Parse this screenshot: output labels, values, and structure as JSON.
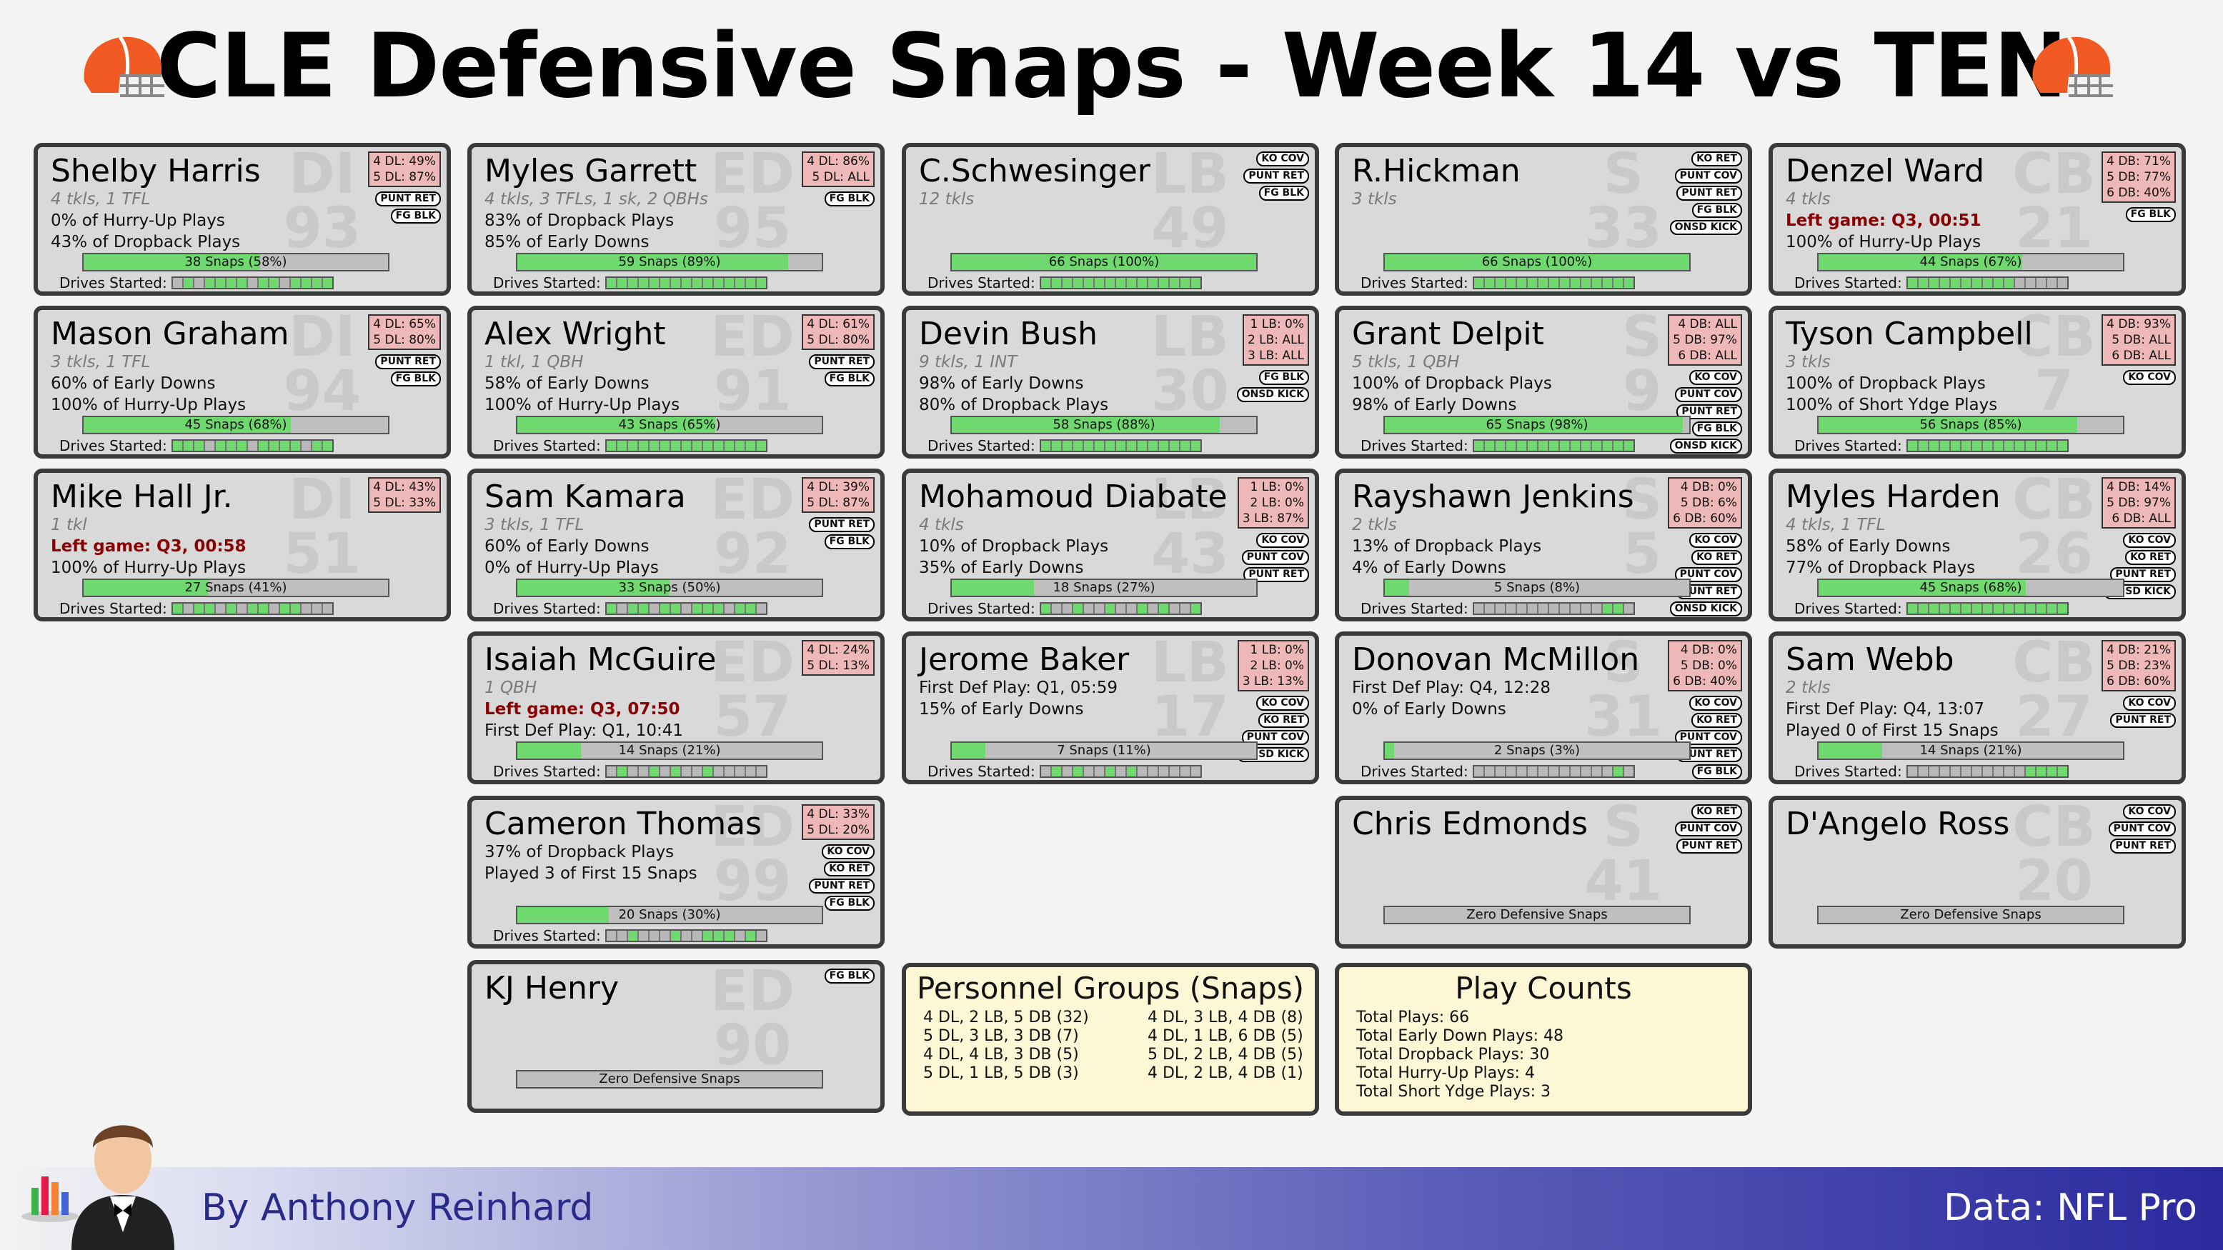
{
  "title": "CLE Defensive Snaps - Week 14 vs TEN",
  "footer": {
    "byline": "By Anthony Reinhard",
    "source": "Data: NFL Pro"
  },
  "cards": [
    {
      "col": 0,
      "row": 0,
      "name": "Shelby Harris",
      "pos": "DI",
      "num": "93",
      "lines": [
        {
          "t": "4 tkls, 1 TFL",
          "c": "stats"
        },
        {
          "t": "0% of Hurry-Up Plays"
        },
        {
          "t": "43% of Dropback Plays"
        }
      ],
      "depth": [
        "4 DL: 49%",
        "5 DL: 87%"
      ],
      "badges": [
        "PUNT RET",
        "FG BLK"
      ],
      "snaps": "38 Snaps (58%)",
      "pct": 58,
      "drives": [
        0,
        1,
        0,
        1,
        1,
        1,
        1,
        0,
        1,
        1,
        0,
        1,
        1,
        1,
        1
      ]
    },
    {
      "col": 0,
      "row": 1,
      "name": "Mason Graham",
      "pos": "DI",
      "num": "94",
      "lines": [
        {
          "t": "3 tkls, 1 TFL",
          "c": "stats"
        },
        {
          "t": "60% of Early Downs"
        },
        {
          "t": "100% of Hurry-Up Plays"
        }
      ],
      "depth": [
        "4 DL: 65%",
        "5 DL: 80%"
      ],
      "badges": [
        "PUNT RET",
        "FG BLK"
      ],
      "snaps": "45 Snaps (68%)",
      "pct": 68,
      "drives": [
        1,
        1,
        1,
        0,
        1,
        1,
        1,
        0,
        1,
        1,
        1,
        1,
        0,
        1,
        1
      ]
    },
    {
      "col": 0,
      "row": 2,
      "name": "Mike Hall Jr.",
      "pos": "DI",
      "num": "51",
      "lines": [
        {
          "t": "1 tkl",
          "c": "stats"
        },
        {
          "t": "Left game: Q3, 00:58",
          "c": "left"
        },
        {
          "t": "100% of Hurry-Up Plays"
        }
      ],
      "depth": [
        "4 DL: 43%",
        "5 DL: 33%"
      ],
      "badges": [],
      "snaps": "27 Snaps (41%)",
      "pct": 41,
      "drives": [
        1,
        0,
        1,
        1,
        0,
        1,
        0,
        1,
        1,
        0,
        1,
        1,
        0,
        0,
        0
      ]
    },
    {
      "col": 1,
      "row": 0,
      "name": "Myles Garrett",
      "pos": "ED",
      "num": "95",
      "lines": [
        {
          "t": "4 tkls, 3 TFLs, 1 sk, 2 QBHs",
          "c": "stats"
        },
        {
          "t": "83% of Dropback Plays"
        },
        {
          "t": "85% of Early Downs"
        }
      ],
      "depth": [
        "4 DL: 86%",
        "5 DL: ALL"
      ],
      "badges": [
        "FG BLK"
      ],
      "snaps": "59 Snaps (89%)",
      "pct": 89,
      "drives": [
        1,
        1,
        1,
        1,
        1,
        1,
        1,
        1,
        1,
        1,
        1,
        1,
        1,
        1,
        1
      ]
    },
    {
      "col": 1,
      "row": 1,
      "name": "Alex Wright",
      "pos": "ED",
      "num": "91",
      "lines": [
        {
          "t": "1 tkl, 1 QBH",
          "c": "stats"
        },
        {
          "t": "58% of Early Downs"
        },
        {
          "t": "100% of Hurry-Up Plays"
        }
      ],
      "depth": [
        "4 DL: 61%",
        "5 DL: 80%"
      ],
      "badges": [
        "PUNT RET",
        "FG BLK"
      ],
      "snaps": "43 Snaps (65%)",
      "pct": 65,
      "drives": [
        1,
        1,
        1,
        1,
        1,
        1,
        1,
        1,
        1,
        1,
        1,
        1,
        1,
        1,
        1
      ]
    },
    {
      "col": 1,
      "row": 2,
      "name": "Sam Kamara",
      "pos": "ED",
      "num": "92",
      "lines": [
        {
          "t": "3 tkls, 1 TFL",
          "c": "stats"
        },
        {
          "t": "60% of Early Downs"
        },
        {
          "t": "0% of Hurry-Up Plays"
        }
      ],
      "depth": [
        "4 DL: 39%",
        "5 DL: 87%"
      ],
      "badges": [
        "PUNT RET",
        "FG BLK"
      ],
      "snaps": "33 Snaps (50%)",
      "pct": 50,
      "drives": [
        1,
        0,
        1,
        1,
        0,
        1,
        1,
        0,
        1,
        1,
        1,
        0,
        1,
        1,
        0
      ]
    },
    {
      "col": 1,
      "row": 3,
      "name": "Isaiah McGuire",
      "pos": "ED",
      "num": "57",
      "lines": [
        {
          "t": "1 QBH",
          "c": "stats"
        },
        {
          "t": "Left game: Q3, 07:50",
          "c": "left"
        },
        {
          "t": "First Def Play: Q1, 10:41"
        }
      ],
      "depth": [
        "4 DL: 24%",
        "5 DL: 13%"
      ],
      "badges": [],
      "snaps": "14 Snaps (21%)",
      "pct": 21,
      "drives": [
        0,
        1,
        0,
        0,
        1,
        0,
        1,
        0,
        0,
        1,
        0,
        0,
        0,
        0,
        0
      ]
    },
    {
      "col": 1,
      "row": 4,
      "name": "Cameron Thomas",
      "pos": "ED",
      "num": "99",
      "lines": [
        {
          "t": "",
          "c": "stats"
        },
        {
          "t": "37% of Dropback Plays"
        },
        {
          "t": "Played 3 of First 15 Snaps"
        }
      ],
      "depth": [
        "4 DL: 33%",
        "5 DL: 20%"
      ],
      "badges": [
        "KO COV",
        "KO RET",
        "PUNT RET",
        "FG BLK"
      ],
      "snaps": "20 Snaps (30%)",
      "pct": 30,
      "drives": [
        0,
        0,
        1,
        0,
        0,
        0,
        1,
        0,
        0,
        1,
        1,
        1,
        0,
        1,
        0
      ]
    },
    {
      "col": 1,
      "row": 5,
      "name": "KJ Henry",
      "pos": "ED",
      "num": "90",
      "lines": [],
      "depth": [],
      "badges": [
        "FG BLK"
      ],
      "snaps": "Zero Defensive Snaps",
      "pct": 0,
      "drives": null
    },
    {
      "col": 2,
      "row": 0,
      "name": "C.Schwesinger",
      "pos": "LB",
      "num": "49",
      "lines": [
        {
          "t": "12 tkls",
          "c": "stats"
        }
      ],
      "depth": [],
      "badges": [
        "KO COV",
        "PUNT RET",
        "FG BLK"
      ],
      "snaps": "66 Snaps (100%)",
      "pct": 100,
      "drives": [
        1,
        1,
        1,
        1,
        1,
        1,
        1,
        1,
        1,
        1,
        1,
        1,
        1,
        1,
        1
      ]
    },
    {
      "col": 2,
      "row": 1,
      "name": "Devin Bush",
      "pos": "LB",
      "num": "30",
      "lines": [
        {
          "t": "9 tkls, 1 INT",
          "c": "stats"
        },
        {
          "t": "98% of Early Downs"
        },
        {
          "t": "80% of Dropback Plays"
        }
      ],
      "depth": [
        "1 LB: 0%",
        "2 LB: ALL",
        "3 LB: ALL"
      ],
      "badges": [
        "FG BLK",
        "ONSD KICK"
      ],
      "snaps": "58 Snaps (88%)",
      "pct": 88,
      "drives": [
        1,
        1,
        1,
        1,
        1,
        1,
        1,
        1,
        1,
        1,
        1,
        1,
        1,
        1,
        1
      ]
    },
    {
      "col": 2,
      "row": 2,
      "name": "Mohamoud Diabate",
      "pos": "LB",
      "num": "43",
      "lines": [
        {
          "t": "4 tkls",
          "c": "stats"
        },
        {
          "t": "10% of Dropback Plays"
        },
        {
          "t": "35% of Early Downs"
        }
      ],
      "depth": [
        "1 LB: 0%",
        "2 LB: 0%",
        "3 LB: 87%"
      ],
      "badges": [
        "KO COV",
        "PUNT COV",
        "PUNT RET"
      ],
      "snaps": "18 Snaps (27%)",
      "pct": 27,
      "drives": [
        1,
        0,
        0,
        1,
        0,
        0,
        1,
        0,
        0,
        1,
        0,
        1,
        0,
        0,
        1
      ]
    },
    {
      "col": 2,
      "row": 3,
      "name": "Jerome Baker",
      "pos": "LB",
      "num": "17",
      "lines": [
        {
          "t": "",
          "c": "stats"
        },
        {
          "t": "First Def Play: Q1, 05:59"
        },
        {
          "t": "15% of Early Downs"
        }
      ],
      "depth": [
        "1 LB: 0%",
        "2 LB: 0%",
        "3 LB: 13%"
      ],
      "badges": [
        "KO COV",
        "KO RET",
        "PUNT COV",
        "ONSD KICK"
      ],
      "snaps": "7 Snaps (11%)",
      "pct": 11,
      "drives": [
        0,
        1,
        0,
        1,
        0,
        0,
        1,
        0,
        1,
        0,
        0,
        0,
        0,
        0,
        0
      ]
    },
    {
      "col": 3,
      "row": 0,
      "name": "R.Hickman",
      "pos": "S",
      "num": "33",
      "lines": [
        {
          "t": "3 tkls",
          "c": "stats"
        }
      ],
      "depth": [],
      "badges": [
        "KO RET",
        "PUNT COV",
        "PUNT RET",
        "FG BLK",
        "ONSD KICK"
      ],
      "snaps": "66 Snaps (100%)",
      "pct": 100,
      "drives": [
        1,
        1,
        1,
        1,
        1,
        1,
        1,
        1,
        1,
        1,
        1,
        1,
        1,
        1,
        1
      ]
    },
    {
      "col": 3,
      "row": 1,
      "name": "Grant Delpit",
      "pos": "S",
      "num": "9",
      "lines": [
        {
          "t": "5 tkls, 1 QBH",
          "c": "stats"
        },
        {
          "t": "100% of Dropback Plays"
        },
        {
          "t": "98% of Early Downs"
        }
      ],
      "depth": [
        "4 DB: ALL",
        "5 DB: 97%",
        "6 DB: ALL"
      ],
      "badges": [
        "KO COV",
        "PUNT COV",
        "PUNT RET",
        "FG BLK",
        "ONSD KICK"
      ],
      "snaps": "65 Snaps (98%)",
      "pct": 98,
      "drives": [
        1,
        1,
        1,
        1,
        1,
        1,
        1,
        1,
        1,
        1,
        1,
        1,
        1,
        1,
        1
      ]
    },
    {
      "col": 3,
      "row": 2,
      "name": "Rayshawn Jenkins",
      "pos": "S",
      "num": "5",
      "lines": [
        {
          "t": "2 tkls",
          "c": "stats"
        },
        {
          "t": "13% of Dropback Plays"
        },
        {
          "t": "4% of Early Downs"
        }
      ],
      "depth": [
        "4 DB: 0%",
        "5 DB: 6%",
        "6 DB: 60%"
      ],
      "badges": [
        "KO COV",
        "KO RET",
        "PUNT COV",
        "PUNT RET",
        "ONSD KICK"
      ],
      "snaps": "5 Snaps (8%)",
      "pct": 8,
      "drives": [
        0,
        0,
        0,
        0,
        0,
        0,
        0,
        0,
        0,
        0,
        0,
        0,
        1,
        1,
        0
      ]
    },
    {
      "col": 3,
      "row": 3,
      "name": "Donovan McMillon",
      "pos": "S",
      "num": "31",
      "lines": [
        {
          "t": "",
          "c": "stats"
        },
        {
          "t": "First Def Play: Q4, 12:28"
        },
        {
          "t": "0% of Early Downs"
        }
      ],
      "depth": [
        "4 DB: 0%",
        "5 DB: 0%",
        "6 DB: 40%"
      ],
      "badges": [
        "KO COV",
        "KO RET",
        "PUNT COV",
        "PUNT RET",
        "FG BLK",
        "ONSD KICK"
      ],
      "snaps": "2 Snaps (3%)",
      "pct": 3,
      "drives": [
        0,
        0,
        0,
        0,
        0,
        0,
        0,
        0,
        0,
        0,
        0,
        0,
        0,
        1,
        0
      ]
    },
    {
      "col": 3,
      "row": 4,
      "name": "Chris Edmonds",
      "pos": "S",
      "num": "41",
      "lines": [],
      "depth": [],
      "badges": [
        "KO RET",
        "PUNT COV",
        "PUNT RET"
      ],
      "snaps": "Zero Defensive Snaps",
      "pct": 0,
      "drives": null
    },
    {
      "col": 4,
      "row": 0,
      "name": "Denzel Ward",
      "pos": "CB",
      "num": "21",
      "lines": [
        {
          "t": "4 tkls",
          "c": "stats"
        },
        {
          "t": "Left game: Q3, 00:51",
          "c": "left"
        },
        {
          "t": "100% of Hurry-Up Plays"
        }
      ],
      "depth": [
        "4 DB: 71%",
        "5 DB: 77%",
        "6 DB: 40%"
      ],
      "badges": [
        "FG BLK"
      ],
      "snaps": "44 Snaps (67%)",
      "pct": 67,
      "drives": [
        1,
        1,
        1,
        1,
        1,
        1,
        1,
        1,
        1,
        1,
        0,
        0,
        0,
        0,
        0
      ]
    },
    {
      "col": 4,
      "row": 1,
      "name": "Tyson Campbell",
      "pos": "CB",
      "num": "7",
      "lines": [
        {
          "t": "3 tkls",
          "c": "stats"
        },
        {
          "t": "100% of Dropback Plays"
        },
        {
          "t": "100% of Short Ydge Plays"
        }
      ],
      "depth": [
        "4 DB: 93%",
        "5 DB: ALL",
        "6 DB: ALL"
      ],
      "badges": [
        "KO COV"
      ],
      "snaps": "56 Snaps (85%)",
      "pct": 85,
      "drives": [
        1,
        1,
        1,
        1,
        1,
        1,
        1,
        1,
        1,
        1,
        1,
        1,
        1,
        1,
        1
      ]
    },
    {
      "col": 4,
      "row": 2,
      "name": "Myles Harden",
      "pos": "CB",
      "num": "26",
      "lines": [
        {
          "t": "4 tkls, 1 TFL",
          "c": "stats"
        },
        {
          "t": "58% of Early Downs"
        },
        {
          "t": "77% of Dropback Plays"
        }
      ],
      "depth": [
        "4 DB: 14%",
        "5 DB: 97%",
        "6 DB: ALL"
      ],
      "badges": [
        "KO COV",
        "KO RET",
        "PUNT RET",
        "ONSD KICK"
      ],
      "snaps": "45 Snaps (68%)",
      "pct": 68,
      "drives": [
        1,
        1,
        1,
        1,
        1,
        1,
        1,
        1,
        1,
        1,
        1,
        1,
        1,
        1,
        1
      ]
    },
    {
      "col": 4,
      "row": 3,
      "name": "Sam Webb",
      "pos": "CB",
      "num": "27",
      "lines": [
        {
          "t": "2 tkls",
          "c": "stats"
        },
        {
          "t": "First Def Play: Q4, 13:07"
        },
        {
          "t": "Played 0 of First 15 Snaps"
        }
      ],
      "depth": [
        "4 DB: 21%",
        "5 DB: 23%",
        "6 DB: 60%"
      ],
      "badges": [
        "KO COV",
        "PUNT RET"
      ],
      "snaps": "14 Snaps (21%)",
      "pct": 21,
      "drives": [
        0,
        0,
        0,
        0,
        0,
        0,
        0,
        0,
        0,
        0,
        0,
        1,
        1,
        1,
        1
      ]
    },
    {
      "col": 4,
      "row": 4,
      "name": "D'Angelo Ross",
      "pos": "CB",
      "num": "20",
      "lines": [],
      "depth": [],
      "badges": [
        "KO COV",
        "PUNT COV",
        "PUNT RET"
      ],
      "snaps": "Zero Defensive Snaps",
      "pct": 0,
      "drives": null
    }
  ],
  "labels": {
    "drives": "Drives Started:"
  },
  "personnel": {
    "title": "Personnel Groups (Snaps)",
    "left": [
      "4 DL, 2 LB, 5 DB (32)",
      "5 DL, 3 LB, 3 DB (7)",
      "4 DL, 4 LB, 3 DB (5)",
      "5 DL, 1 LB, 5 DB (3)"
    ],
    "right": [
      "4 DL, 3 LB, 4 DB (8)",
      "4 DL, 1 LB, 6 DB (5)",
      "5 DL, 2 LB, 4 DB (5)",
      "4 DL, 2 LB, 4 DB (1)"
    ]
  },
  "playcounts": {
    "title": "Play Counts",
    "items": [
      "Total Plays: 66",
      "Total Early Down Plays: 48",
      "Total Dropback Plays: 30",
      "Total Hurry-Up Plays: 4",
      "Total Short Ydge Plays: 3"
    ]
  },
  "colors": {
    "bar_fill": "#6fd96f",
    "depth_bg": "#efb8b8",
    "left_game": "#8b0000",
    "info_bg": "#fdf7d6"
  }
}
